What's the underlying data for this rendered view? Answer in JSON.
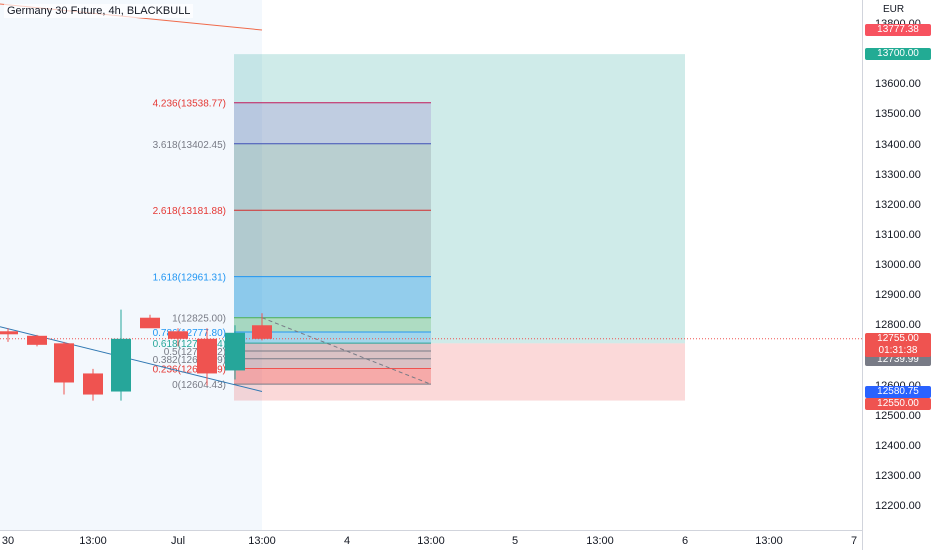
{
  "header": {
    "title": "Germany 30 Future, 4h, BLACKBULL"
  },
  "price_scale": {
    "currency": "EUR",
    "ticks": [
      "13800.00",
      "13700.00",
      "13600.00",
      "13500.00",
      "13400.00",
      "13300.00",
      "13200.00",
      "13100.00",
      "13000.00",
      "12900.00",
      "12800.00",
      "12700.00",
      "12600.00",
      "12500.00",
      "12400.00",
      "12300.00",
      "12200.00"
    ],
    "badges": {
      "ma_price": "13777.38",
      "target_price": "13700.00",
      "last_price": "12755.00",
      "countdown": "01:31:38",
      "bid_price": "12739.99",
      "ma2_price": "12580.75",
      "stop_price": "12550.00"
    }
  },
  "time_axis": {
    "labels": [
      "30",
      "13:00",
      "Jul",
      "13:00",
      "4",
      "13:00",
      "5",
      "13:00",
      "6",
      "13:00",
      "7"
    ]
  },
  "fib_labels": [
    {
      "text": "4.236(13538.77)"
    },
    {
      "text": "3.618(13402.45)"
    },
    {
      "text": "2.618(13181.88)"
    },
    {
      "text": "1.618(12961.31)"
    },
    {
      "text": "1(12825.00)"
    },
    {
      "text": "0.786(12777.80)"
    },
    {
      "text": "0.618(12740.74)"
    },
    {
      "text": "0.5(12714.72)"
    },
    {
      "text": "0.382(12688.69)"
    },
    {
      "text": "0.236(12656.49)"
    },
    {
      "text": "0(12604.43)"
    }
  ],
  "chart_data": {
    "type": "candlestick",
    "symbol": "Germany 30 Future",
    "interval": "4h",
    "currency": "EUR",
    "ylim": [
      12150,
      13850
    ],
    "candles": [
      {
        "o": 12780,
        "h": 12790,
        "l": 12745,
        "c": 12770
      },
      {
        "o": 12765,
        "h": 12768,
        "l": 12730,
        "c": 12735
      },
      {
        "o": 12740,
        "h": 12745,
        "l": 12570,
        "c": 12610
      },
      {
        "o": 12640,
        "h": 12655,
        "l": 12550,
        "c": 12570
      },
      {
        "o": 12580,
        "h": 12852,
        "l": 12550,
        "c": 12755
      },
      {
        "o": 12825,
        "h": 12835,
        "l": 12800,
        "c": 12790
      },
      {
        "o": 12780,
        "h": 12790,
        "l": 12730,
        "c": 12755
      },
      {
        "o": 12755,
        "h": 12790,
        "l": 12600,
        "c": 12640
      },
      {
        "o": 12650,
        "h": 12800,
        "l": 12620,
        "c": 12775
      },
      {
        "o": 12800,
        "h": 12840,
        "l": 12750,
        "c": 12755
      }
    ],
    "position": {
      "entry": 12739.99,
      "target": 13700.0,
      "stop": 12550.0
    },
    "fib_levels": [
      {
        "ratio": 4.236,
        "price": 13538.77
      },
      {
        "ratio": 3.618,
        "price": 13402.45
      },
      {
        "ratio": 2.618,
        "price": 13181.88
      },
      {
        "ratio": 1.618,
        "price": 12961.31
      },
      {
        "ratio": 1,
        "price": 12825.0
      },
      {
        "ratio": 0.786,
        "price": 12777.8
      },
      {
        "ratio": 0.618,
        "price": 12740.74
      },
      {
        "ratio": 0.5,
        "price": 12714.72
      },
      {
        "ratio": 0.382,
        "price": 12688.69
      },
      {
        "ratio": 0.236,
        "price": 12656.49
      },
      {
        "ratio": 0,
        "price": 12604.43
      }
    ],
    "colors": {
      "up": "#26a69a",
      "down": "#ef5350",
      "target_zone": "#26a69a",
      "stop_zone": "#ef5350",
      "ma_red": "#f06a4a",
      "ma_blue": "#3179b3",
      "badge_target": "#22ab94",
      "badge_last": "#ef5350",
      "badge_bid": "#787b86",
      "badge_ma2": "#2962ff",
      "badge_ma": "#f7525f"
    }
  }
}
